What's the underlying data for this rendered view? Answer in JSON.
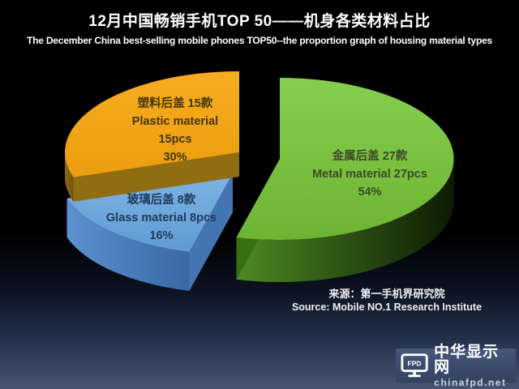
{
  "header": {
    "title": "12月中国畅销手机TOP 50——机身各类材料占比",
    "subtitle": "The December China best-selling mobile phones TOP50--the proportion graph of housing material types"
  },
  "chart_data": {
    "type": "pie",
    "style": "3d-exploded",
    "title": "12月中国畅销手机TOP 50——机身各类材料占比",
    "subtitle": "The December China best-selling mobile phones TOP50--the proportion graph of housing material types",
    "total_models": 50,
    "slices": [
      {
        "id": "metal",
        "label_zh": "金属后盖 27款",
        "label_en": "Metal material 27pcs",
        "count": 27,
        "pct": 54,
        "label_lines": [
          "金属后盖 27款",
          "Metal material 27pcs",
          "54%"
        ],
        "face": [
          "#86CE4E",
          "#6CB431"
        ],
        "wall": [
          "#4E8A22",
          "#0C1A04"
        ],
        "edge": "#377013",
        "label_color": "#3C4A28"
      },
      {
        "id": "glass",
        "label_zh": "玻璃后盖 8款",
        "label_en": "Glass material 8pcs",
        "count": 8,
        "pct": 16,
        "label_lines": [
          "玻璃后盖 8款",
          "Glass material 8pcs",
          "16%"
        ],
        "face": [
          "#7FB3E3",
          "#5E9AD3"
        ],
        "wall": [
          "#5C90CE",
          "#3A67A6"
        ],
        "edge": "#4474B2",
        "label_color": "#1E3A5C"
      },
      {
        "id": "plastic",
        "label_zh": "塑料后盖 15款",
        "label_en": "Plastic material",
        "count": 15,
        "pct": 30,
        "label_lines": [
          "塑料后盖 15款",
          "Plastic material",
          "15pcs",
          "30%"
        ],
        "face": [
          "#F6AC1F",
          "#EC9D0F"
        ],
        "wall": [
          "#8A6A10",
          "#6E530B"
        ],
        "edge": "#8F6E12",
        "label_color": "#44350E"
      }
    ]
  },
  "source": {
    "zh": "来源：第一手机界研究院",
    "en": "Source: Mobile NO.1 Research Institute"
  },
  "watermark": {
    "icon_label": "FPD",
    "site_name": "中华显示网",
    "site_domain": "chinafpd.net"
  }
}
